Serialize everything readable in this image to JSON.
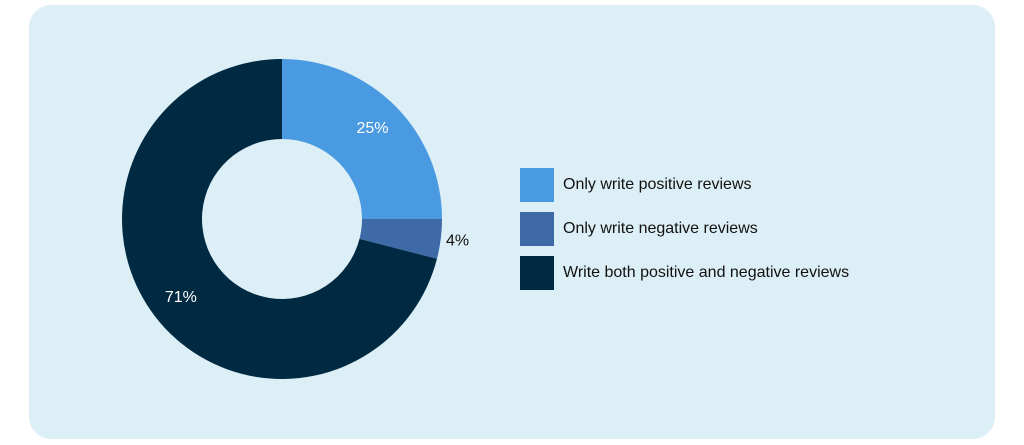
{
  "chart_data": {
    "type": "pie",
    "donut": true,
    "categories": [
      "Only write positive reviews",
      "Only write negative reviews",
      "Write both positive and negative reviews"
    ],
    "values": [
      25,
      4,
      71
    ],
    "labels": [
      "25%",
      "4%",
      "71%"
    ],
    "colors": [
      "#4a9ae2",
      "#3e6aa8",
      "#002a42"
    ],
    "legend_position": "right"
  }
}
